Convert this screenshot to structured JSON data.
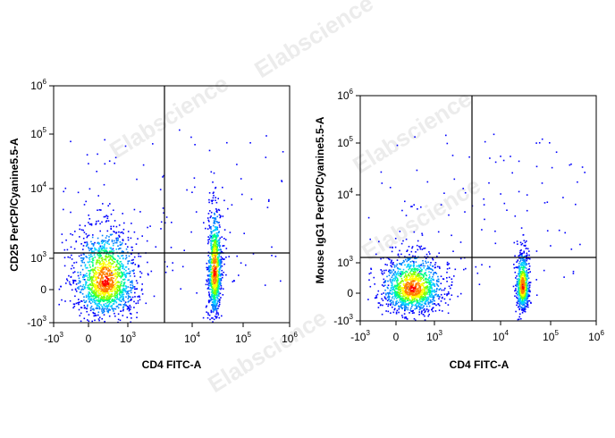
{
  "watermark": {
    "text": "Elabscience",
    "registered": "®"
  },
  "tick_labels": {
    "x": [
      {
        "value": -1000,
        "base": "-10",
        "exp": "3"
      },
      {
        "value": 0,
        "base": "0",
        "exp": ""
      },
      {
        "value": 1000,
        "base": "10",
        "exp": "3"
      },
      {
        "value": 10000,
        "base": "10",
        "exp": "4"
      },
      {
        "value": 100000,
        "base": "10",
        "exp": "5"
      },
      {
        "value": 1000000,
        "base": "10",
        "exp": "6"
      }
    ],
    "y": [
      {
        "value": -1000,
        "base": "-10",
        "exp": "3"
      },
      {
        "value": 0,
        "base": "0",
        "exp": ""
      },
      {
        "value": 1000,
        "base": "10",
        "exp": "3"
      },
      {
        "value": 10000,
        "base": "10",
        "exp": "4"
      },
      {
        "value": 100000,
        "base": "10",
        "exp": "5"
      },
      {
        "value": 1000000,
        "base": "10",
        "exp": "6"
      }
    ]
  },
  "density_colors": [
    "#0000ff",
    "#0080ff",
    "#00d0ff",
    "#00ff80",
    "#80ff00",
    "#ffff00",
    "#ff8000",
    "#ff0000"
  ],
  "chart_data": [
    {
      "type": "scatter",
      "title": "",
      "xlabel": "CD4 FITC-A",
      "ylabel": "CD25 PerCP/Cyanine5.5-A",
      "xscale": "biexponential",
      "yscale": "biexponential",
      "xlim": [
        -1000,
        1000000
      ],
      "ylim": [
        -1000,
        1000000
      ],
      "grid": false,
      "gates": {
        "x": 3500,
        "y": 1300
      },
      "populations": [
        {
          "name": "",
          "center": [
            200,
            100
          ],
          "spread": [
            0.55,
            0.45
          ],
          "count": 1500
        },
        {
          "name": "",
          "center": [
            27000,
            300
          ],
          "spread": [
            0.12,
            0.55
          ],
          "count": 900
        }
      ]
    },
    {
      "type": "scatter",
      "title": "",
      "xlabel": "CD4 FITC-A",
      "ylabel": "Mouse IgG1 PerCP/Cyanine5.5-A",
      "xscale": "biexponential",
      "yscale": "biexponential",
      "xlim": [
        -1000,
        1000000
      ],
      "ylim": [
        -1000,
        1000000
      ],
      "grid": false,
      "gates": {
        "x": 3500,
        "y": 1300
      },
      "populations": [
        {
          "name": "",
          "center": [
            200,
            50
          ],
          "spread": [
            0.55,
            0.3
          ],
          "count": 1300
        },
        {
          "name": "",
          "center": [
            27000,
            80
          ],
          "spread": [
            0.12,
            0.3
          ],
          "count": 650
        }
      ]
    }
  ]
}
